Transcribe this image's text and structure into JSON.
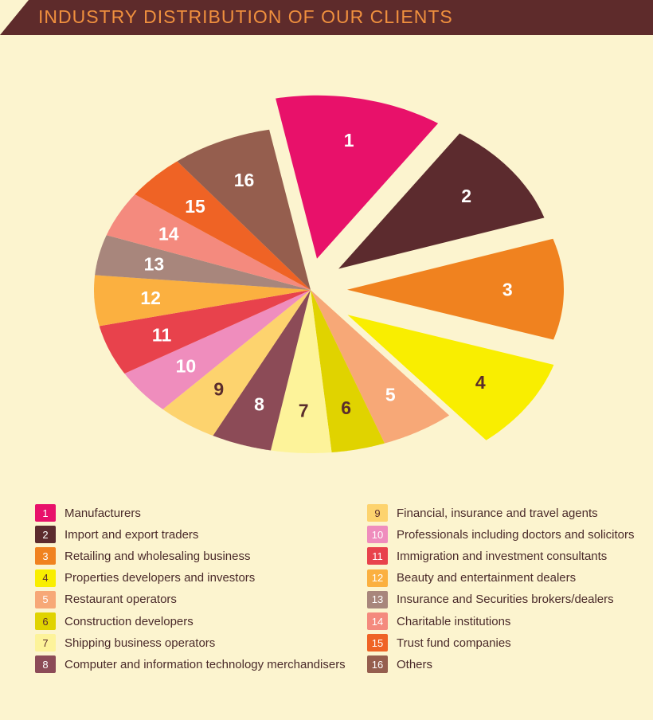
{
  "title": "INDUSTRY DISTRIBUTION OF OUR CLIENTS",
  "colors": {
    "header_bg": "#5e2b2b",
    "title_text": "#f0903e",
    "background": "#fcf4cf"
  },
  "chart_data": {
    "type": "pie",
    "title": "INDUSTRY DISTRIBUTION OF OUR CLIENTS",
    "exploded": [
      "1",
      "2",
      "3",
      "4"
    ],
    "slices": [
      {
        "label": "1",
        "name": "Manufacturers",
        "value": 12.5,
        "color": "#e8116a"
      },
      {
        "label": "2",
        "name": "Import and export traders",
        "value": 10.5,
        "color": "#5c2b2e"
      },
      {
        "label": "3",
        "name": "Retailing and wholesaling business",
        "value": 10.0,
        "color": "#f0821f"
      },
      {
        "label": "4",
        "name": "Properties developers and investors",
        "value": 9.0,
        "color": "#f9ee00"
      },
      {
        "label": "5",
        "name": "Restaurant operators",
        "value": 5.5,
        "color": "#f7a877"
      },
      {
        "label": "6",
        "name": "Construction developers",
        "value": 4.0,
        "color": "#e0d300"
      },
      {
        "label": "7",
        "name": "Shipping business operators",
        "value": 4.5,
        "color": "#fdf39a"
      },
      {
        "label": "8",
        "name": "Computer and information technology merchandisers",
        "value": 4.5,
        "color": "#8c4b57"
      },
      {
        "label": "9",
        "name": "Financial, insurance and travel agents",
        "value": 4.5,
        "color": "#fdd36e"
      },
      {
        "label": "10",
        "name": "Professionals including doctors and solicitors",
        "value": 4.5,
        "color": "#ef8dbd"
      },
      {
        "label": "11",
        "name": "Immigration and investment consultants",
        "value": 5.0,
        "color": "#e8424c"
      },
      {
        "label": "12",
        "name": "Beauty and entertainment dealers",
        "value": 5.0,
        "color": "#fbb040"
      },
      {
        "label": "13",
        "name": "Insurance and Securities brokers/dealers",
        "value": 4.0,
        "color": "#a8867c"
      },
      {
        "label": "14",
        "name": "Charitable institutions",
        "value": 4.5,
        "color": "#f48a7e"
      },
      {
        "label": "15",
        "name": "Trust fund companies",
        "value": 4.5,
        "color": "#ef6325"
      },
      {
        "label": "16",
        "name": "Others",
        "value": 7.5,
        "color": "#955e4e"
      }
    ]
  }
}
